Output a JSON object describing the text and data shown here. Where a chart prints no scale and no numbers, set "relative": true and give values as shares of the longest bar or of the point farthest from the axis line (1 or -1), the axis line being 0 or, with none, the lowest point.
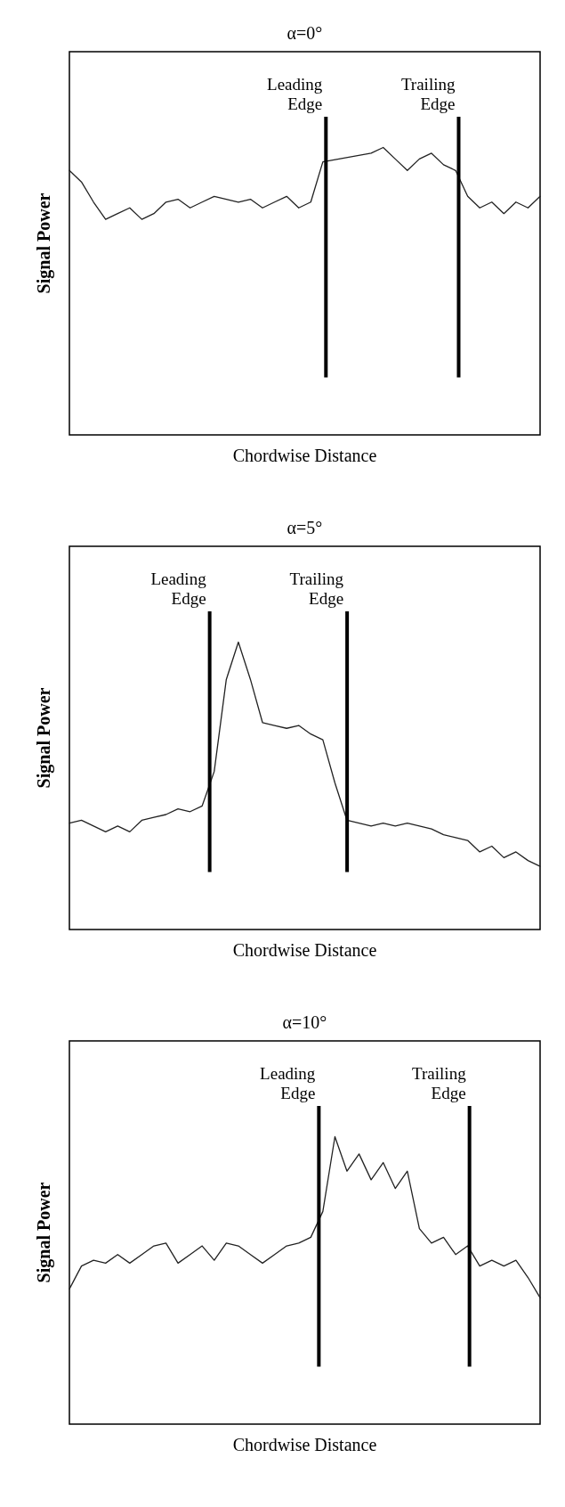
{
  "chart_data": [
    {
      "type": "line",
      "title": "α=0°",
      "xlabel": "Chordwise Distance",
      "ylabel": "Signal Power",
      "relative": true,
      "categories": [
        null,
        null,
        null,
        null,
        null,
        null,
        null,
        null,
        null,
        null,
        null,
        null,
        null,
        null,
        null,
        null,
        null,
        null,
        null,
        null,
        null,
        null,
        null,
        null,
        null,
        null,
        null,
        null,
        null,
        null,
        null,
        null,
        null,
        null,
        null,
        null,
        null,
        null,
        null,
        null
      ],
      "series": [
        {
          "color": "#222222",
          "values": [
            0.92,
            0.88,
            0.81,
            0.75,
            0.77,
            0.79,
            0.75,
            0.77,
            0.81,
            0.82,
            0.79,
            0.81,
            0.83,
            0.82,
            0.81,
            0.82,
            0.79,
            0.81,
            0.83,
            0.79,
            0.81,
            0.95,
            null,
            null,
            null,
            0.98,
            1,
            0.96,
            0.92,
            0.96,
            0.98,
            0.94,
            0.92,
            0.83,
            0.79,
            0.81,
            0.77,
            0.81,
            0.79,
            0.83
          ]
        }
      ],
      "annotations": [
        "Leading Edge",
        "Trailing Edge"
      ]
    },
    {
      "type": "line",
      "title": "α=5°",
      "xlabel": "Chordwise Distance",
      "ylabel": "Signal Power",
      "relative": true,
      "categories": [
        null,
        null,
        null,
        null,
        null,
        null,
        null,
        null,
        null,
        null,
        null,
        null,
        null,
        null,
        null,
        null,
        null,
        null,
        null,
        null,
        null,
        null,
        null,
        null,
        null,
        null,
        null,
        null,
        null,
        null,
        null,
        null,
        null,
        null,
        null,
        null,
        null,
        null,
        null,
        null
      ],
      "series": [
        {
          "color": "#222222",
          "values": [
            0.37,
            0.38,
            0.36,
            0.34,
            0.36,
            0.34,
            0.38,
            0.39,
            0.4,
            0.42,
            0.41,
            0.43,
            0.55,
            0.87,
            1,
            0.87,
            0.72,
            0.71,
            0.7,
            0.71,
            0.68,
            0.66,
            0.51,
            0.38,
            0.37,
            0.36,
            0.37,
            0.36,
            0.37,
            0.36,
            0.35,
            0.33,
            0.32,
            0.31,
            0.27,
            0.29,
            0.25,
            0.27,
            0.24,
            0.22
          ]
        }
      ],
      "annotations": [
        "Leading Edge",
        "Trailing Edge"
      ]
    },
    {
      "type": "line",
      "title": "α=10°",
      "xlabel": "Chordwise Distance",
      "ylabel": "Signal Power",
      "relative": true,
      "categories": [
        null,
        null,
        null,
        null,
        null,
        null,
        null,
        null,
        null,
        null,
        null,
        null,
        null,
        null,
        null,
        null,
        null,
        null,
        null,
        null,
        null,
        null,
        null,
        null,
        null,
        null,
        null,
        null,
        null,
        null,
        null,
        null,
        null,
        null,
        null,
        null,
        null,
        null,
        null,
        null
      ],
      "series": [
        {
          "color": "#222222",
          "values": [
            0.47,
            0.55,
            0.57,
            0.56,
            0.59,
            0.56,
            0.59,
            0.62,
            0.63,
            0.56,
            0.59,
            0.62,
            0.57,
            0.63,
            0.62,
            0.59,
            0.56,
            0.59,
            0.62,
            0.63,
            0.65,
            0.74,
            1,
            0.88,
            0.94,
            0.85,
            0.91,
            0.82,
            0.88,
            0.68,
            0.63,
            0.65,
            0.59,
            0.62,
            0.55,
            0.57,
            0.55,
            0.57,
            0.51,
            0.44
          ]
        }
      ],
      "annotations": [
        "Leading Edge",
        "Trailing Edge"
      ]
    }
  ]
}
